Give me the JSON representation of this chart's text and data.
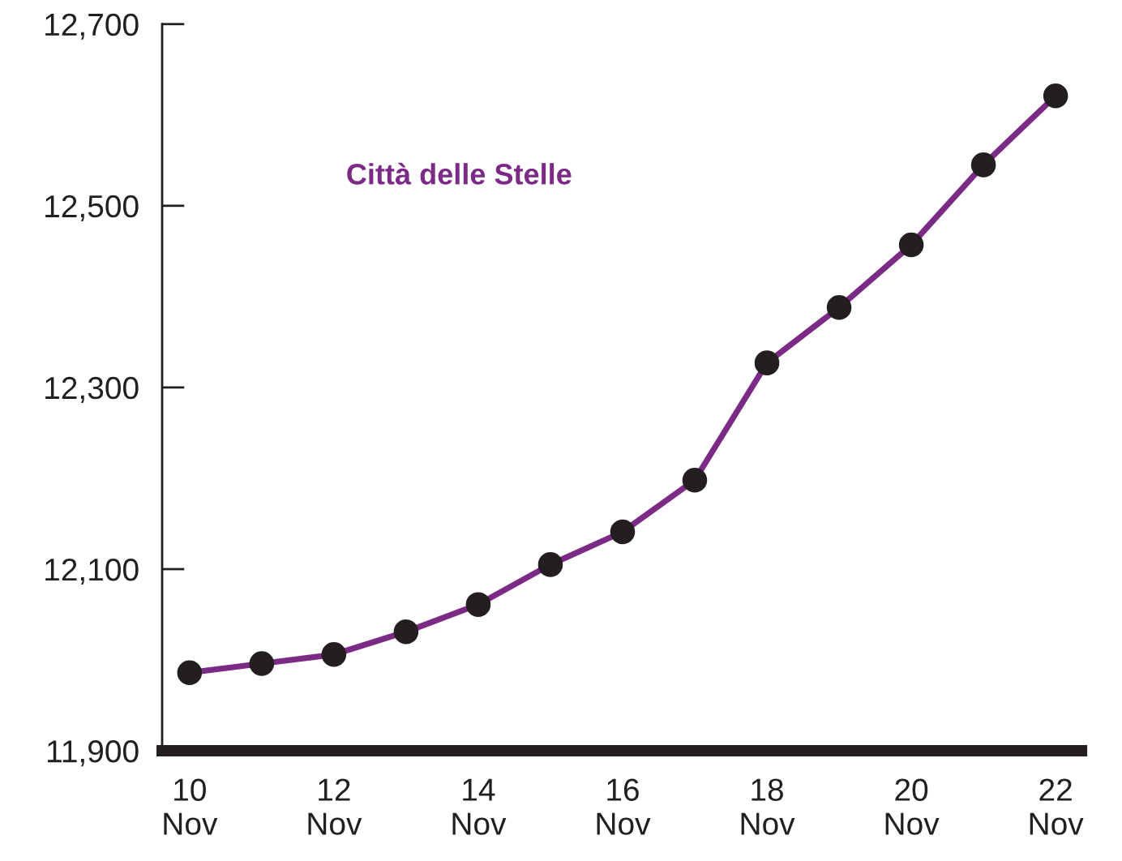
{
  "chart_data": {
    "type": "line",
    "categories": [
      "10\nNov",
      null,
      "12\nNov",
      null,
      "14\nNov",
      null,
      "16\nNov",
      null,
      "18\nNov",
      null,
      "20\nNov",
      null,
      "22\nNov"
    ],
    "series": [
      {
        "name": "Città delle Stelle",
        "color": "#7b2a86",
        "values": [
          11986,
          11996,
          12006,
          12031,
          12061,
          12105,
          12141,
          12198,
          12327,
          12388,
          12457,
          12545,
          12621
        ]
      }
    ],
    "ylim": [
      11900,
      12700
    ],
    "yticks": [
      {
        "value": 11900,
        "label": "11,900"
      },
      {
        "value": 12100,
        "label": "12,100"
      },
      {
        "value": 12300,
        "label": "12,300"
      },
      {
        "value": 12500,
        "label": "12,500"
      },
      {
        "value": 12700,
        "label": "12,700"
      }
    ],
    "marker": "circle",
    "line_style": "solid",
    "grid": false,
    "legend": false
  }
}
